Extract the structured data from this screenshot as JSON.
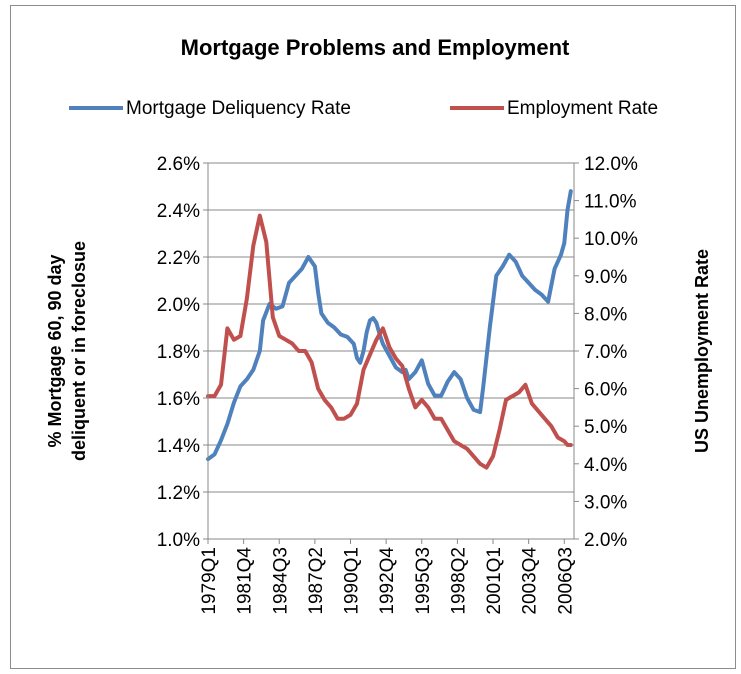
{
  "chart_data": {
    "type": "line",
    "title": "Mortgage Problems and  Employment",
    "legend": {
      "placement": "top"
    },
    "y_left": {
      "label_line1": "% Mortgage 60, 90 day",
      "label_line2": "deliquent or in foreclosue",
      "min": 1.0,
      "max": 2.6,
      "step": 0.2,
      "tick_labels": [
        "1.0%",
        "1.2%",
        "1.4%",
        "1.6%",
        "1.8%",
        "2.0%",
        "2.2%",
        "2.4%",
        "2.6%"
      ]
    },
    "y_right": {
      "label": "US Unemployment Rate",
      "min": 2.0,
      "max": 12.0,
      "step": 1.0,
      "tick_labels": [
        "2.0%",
        "3.0%",
        "4.0%",
        "5.0%",
        "6.0%",
        "7.0%",
        "8.0%",
        "9.0%",
        "10.0%",
        "11.0%",
        "12.0%"
      ]
    },
    "x_axis": {
      "categories_start": "1979Q1",
      "tick_labels": [
        "1979Q1",
        "1981Q4",
        "1984Q3",
        "1987Q2",
        "1990Q1",
        "1992Q4",
        "1995Q3",
        "1998Q2",
        "2001Q1",
        "2003Q4",
        "2006Q3"
      ]
    },
    "grid": true,
    "series": [
      {
        "name": "Mortgage Deliquency Rate",
        "axis": "left",
        "color": "#4f81bd",
        "points": [
          [
            "1979Q1",
            1.34
          ],
          [
            "1979Q3",
            1.36
          ],
          [
            "1980Q1",
            1.42
          ],
          [
            "1980Q3",
            1.49
          ],
          [
            "1981Q1",
            1.58
          ],
          [
            "1981Q3",
            1.65
          ],
          [
            "1982Q1",
            1.68
          ],
          [
            "1982Q3",
            1.72
          ],
          [
            "1983Q1",
            1.8
          ],
          [
            "1983Q2",
            1.93
          ],
          [
            "1983Q4",
            2.0
          ],
          [
            "1984Q2",
            1.98
          ],
          [
            "1984Q4",
            1.99
          ],
          [
            "1985Q2",
            2.09
          ],
          [
            "1985Q4",
            2.12
          ],
          [
            "1986Q2",
            2.15
          ],
          [
            "1986Q4",
            2.2
          ],
          [
            "1987Q2",
            2.16
          ],
          [
            "1987Q3",
            2.05
          ],
          [
            "1987Q4",
            1.96
          ],
          [
            "1988Q2",
            1.92
          ],
          [
            "1988Q4",
            1.9
          ],
          [
            "1989Q2",
            1.87
          ],
          [
            "1989Q4",
            1.86
          ],
          [
            "1990Q2",
            1.83
          ],
          [
            "1990Q3",
            1.77
          ],
          [
            "1990Q4",
            1.75
          ],
          [
            "1991Q1",
            1.8
          ],
          [
            "1991Q2",
            1.88
          ],
          [
            "1991Q3",
            1.93
          ],
          [
            "1991Q4",
            1.94
          ],
          [
            "1992Q1",
            1.92
          ],
          [
            "1992Q2",
            1.87
          ],
          [
            "1992Q3",
            1.83
          ],
          [
            "1993Q1",
            1.78
          ],
          [
            "1993Q3",
            1.73
          ],
          [
            "1994Q1",
            1.71
          ],
          [
            "1994Q2",
            1.72
          ],
          [
            "1994Q3",
            1.68
          ],
          [
            "1995Q1",
            1.71
          ],
          [
            "1995Q3",
            1.76
          ],
          [
            "1996Q1",
            1.66
          ],
          [
            "1996Q3",
            1.61
          ],
          [
            "1997Q1",
            1.61
          ],
          [
            "1997Q3",
            1.67
          ],
          [
            "1998Q1",
            1.71
          ],
          [
            "1998Q3",
            1.68
          ],
          [
            "1999Q1",
            1.6
          ],
          [
            "1999Q3",
            1.55
          ],
          [
            "2000Q1",
            1.54
          ],
          [
            "2000Q2",
            1.65
          ],
          [
            "2000Q4",
            1.9
          ],
          [
            "2001Q2",
            2.12
          ],
          [
            "2001Q4",
            2.16
          ],
          [
            "2002Q2",
            2.21
          ],
          [
            "2002Q4",
            2.18
          ],
          [
            "2003Q2",
            2.12
          ],
          [
            "2003Q4",
            2.09
          ],
          [
            "2004Q2",
            2.06
          ],
          [
            "2004Q4",
            2.04
          ],
          [
            "2005Q2",
            2.01
          ],
          [
            "2005Q4",
            2.15
          ],
          [
            "2006Q2",
            2.21
          ],
          [
            "2006Q3",
            2.26
          ],
          [
            "2006Q4",
            2.4
          ],
          [
            "2007Q1",
            2.48
          ]
        ]
      },
      {
        "name": "Employment Rate",
        "axis": "right",
        "color": "#c0504d",
        "points": [
          [
            "1979Q1",
            5.8
          ],
          [
            "1979Q3",
            5.8
          ],
          [
            "1980Q1",
            6.1
          ],
          [
            "1980Q3",
            7.6
          ],
          [
            "1981Q1",
            7.3
          ],
          [
            "1981Q3",
            7.4
          ],
          [
            "1982Q1",
            8.4
          ],
          [
            "1982Q3",
            9.8
          ],
          [
            "1983Q1",
            10.6
          ],
          [
            "1983Q3",
            9.9
          ],
          [
            "1984Q1",
            7.9
          ],
          [
            "1984Q3",
            7.4
          ],
          [
            "1985Q1",
            7.3
          ],
          [
            "1985Q3",
            7.2
          ],
          [
            "1986Q1",
            7.0
          ],
          [
            "1986Q3",
            7.0
          ],
          [
            "1987Q1",
            6.7
          ],
          [
            "1987Q3",
            6.0
          ],
          [
            "1988Q1",
            5.7
          ],
          [
            "1988Q3",
            5.5
          ],
          [
            "1989Q1",
            5.2
          ],
          [
            "1989Q3",
            5.2
          ],
          [
            "1990Q1",
            5.3
          ],
          [
            "1990Q3",
            5.6
          ],
          [
            "1991Q1",
            6.5
          ],
          [
            "1991Q3",
            6.9
          ],
          [
            "1992Q1",
            7.3
          ],
          [
            "1992Q3",
            7.6
          ],
          [
            "1993Q1",
            7.1
          ],
          [
            "1993Q3",
            6.8
          ],
          [
            "1994Q1",
            6.6
          ],
          [
            "1994Q3",
            6.0
          ],
          [
            "1995Q1",
            5.5
          ],
          [
            "1995Q3",
            5.7
          ],
          [
            "1996Q1",
            5.5
          ],
          [
            "1996Q3",
            5.2
          ],
          [
            "1997Q1",
            5.2
          ],
          [
            "1997Q3",
            4.9
          ],
          [
            "1998Q1",
            4.6
          ],
          [
            "1998Q3",
            4.5
          ],
          [
            "1999Q1",
            4.4
          ],
          [
            "1999Q3",
            4.2
          ],
          [
            "2000Q1",
            4.0
          ],
          [
            "2000Q3",
            3.9
          ],
          [
            "2001Q1",
            4.2
          ],
          [
            "2001Q3",
            4.9
          ],
          [
            "2002Q1",
            5.7
          ],
          [
            "2002Q3",
            5.8
          ],
          [
            "2003Q1",
            5.9
          ],
          [
            "2003Q3",
            6.1
          ],
          [
            "2004Q1",
            5.6
          ],
          [
            "2004Q3",
            5.4
          ],
          [
            "2005Q1",
            5.2
          ],
          [
            "2005Q3",
            5.0
          ],
          [
            "2006Q1",
            4.7
          ],
          [
            "2006Q3",
            4.6
          ],
          [
            "2006Q4",
            4.5
          ],
          [
            "2007Q1",
            4.5
          ]
        ]
      }
    ]
  }
}
